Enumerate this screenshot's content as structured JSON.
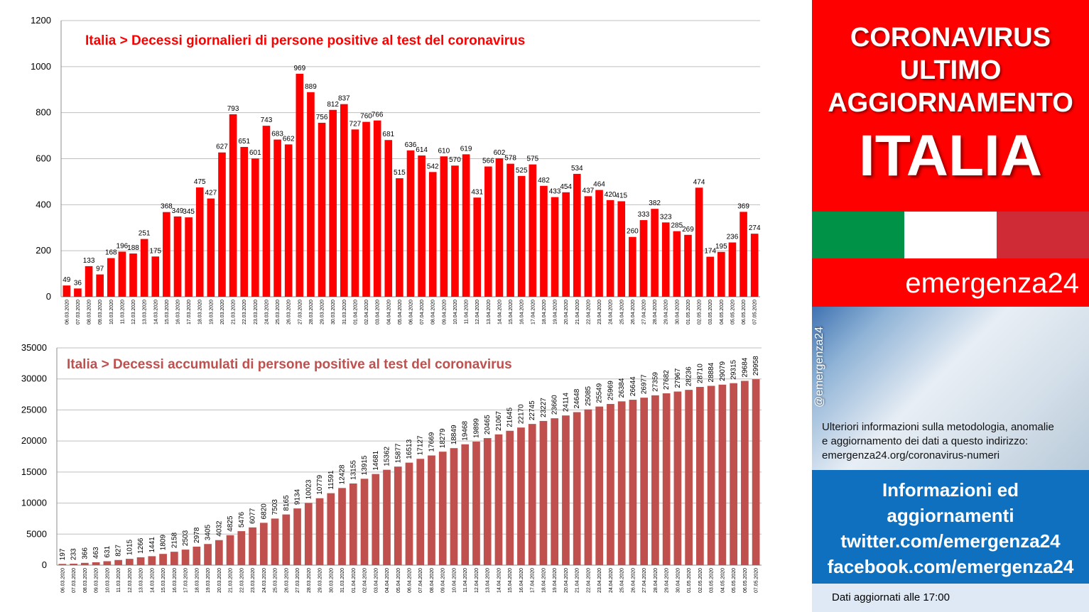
{
  "dates": [
    "06.03.2020",
    "07.03.2020",
    "08.03.2020",
    "09.03.2020",
    "10.03.2020",
    "11.03.2020",
    "12.03.2020",
    "13.03.2020",
    "14.03.2020",
    "15.03.2020",
    "16.03.2020",
    "17.03.2020",
    "18.03.2020",
    "19.03.2020",
    "20.03.2020",
    "21.03.2020",
    "22.03.2020",
    "23.03.2020",
    "24.03.2020",
    "25.03.2020",
    "26.03.2020",
    "27.03.2020",
    "28.03.2020",
    "29.03.2020",
    "30.03.2020",
    "31.03.2020",
    "01.04.2020",
    "02.04.2020",
    "03.04.2020",
    "04.04.2020",
    "05.04.2020",
    "06.04.2020",
    "07.04.2020",
    "08.04.2020",
    "09.04.2020",
    "10.04.2020",
    "11.04.2020",
    "12.04.2020",
    "13.04.2020",
    "14.04.2020",
    "15.04.2020",
    "16.04.2020",
    "17.04.2020",
    "18.04.2020",
    "19.04.2020",
    "20.04.2020",
    "21.04.2020",
    "22.04.2020",
    "23.04.2020",
    "24.04.2020",
    "25.04.2020",
    "26.04.2020",
    "27.04.2020",
    "28.04.2020",
    "29.04.2020",
    "30.04.2020",
    "01.05.2020",
    "02.05.2020",
    "03.05.2020",
    "04.05.2020",
    "05.05.2020",
    "06.05.2020",
    "07.05.2020"
  ],
  "chart_data": [
    {
      "type": "bar",
      "title": "Italia > Decessi giornalieri di persone positive al test del coronavirus",
      "color": "#fe0000",
      "title_color": "#fe0000",
      "ylim": [
        0,
        1200
      ],
      "yticks": [
        0,
        200,
        400,
        600,
        800,
        1000,
        1200
      ],
      "grid": true,
      "value_labels": "horizontal",
      "values": [
        49,
        36,
        133,
        97,
        168,
        196,
        188,
        251,
        175,
        368,
        349,
        345,
        475,
        427,
        627,
        793,
        651,
        601,
        743,
        683,
        662,
        969,
        889,
        756,
        812,
        837,
        727,
        760,
        766,
        681,
        515,
        636,
        614,
        542,
        610,
        570,
        619,
        431,
        566,
        602,
        578,
        525,
        575,
        482,
        433,
        454,
        534,
        437,
        464,
        420,
        415,
        260,
        333,
        382,
        323,
        285,
        269,
        474,
        174,
        195,
        236,
        369,
        274
      ]
    },
    {
      "type": "bar",
      "title": "Italia > Decessi accumulati di persone positive al test del coronavirus",
      "color": "#c0504d",
      "title_color": "#c0504d",
      "ylim": [
        0,
        35000
      ],
      "yticks": [
        0,
        5000,
        10000,
        15000,
        20000,
        25000,
        30000,
        35000
      ],
      "grid": true,
      "value_labels": "vertical",
      "values": [
        197,
        233,
        366,
        463,
        631,
        827,
        1015,
        1266,
        1441,
        1809,
        2158,
        2503,
        2978,
        3405,
        4032,
        4825,
        5476,
        6077,
        6820,
        7503,
        8165,
        9134,
        10023,
        10779,
        11591,
        12428,
        13155,
        13915,
        14681,
        15362,
        15877,
        16513,
        17127,
        17669,
        18279,
        18849,
        19468,
        19899,
        20465,
        21067,
        21645,
        22170,
        22745,
        23227,
        23660,
        24114,
        24648,
        25085,
        25549,
        25969,
        26384,
        26644,
        26977,
        27359,
        27682,
        27967,
        28236,
        28710,
        28884,
        29079,
        29315,
        29684,
        29958
      ]
    }
  ],
  "panel": {
    "title_line1": "CORONAVIRUS",
    "title_line2": "ULTIMO",
    "title_line3": "AGGIORNAMENTO",
    "title_big": "ITALIA",
    "flag_colors": [
      "#009246",
      "#ffffff",
      "#ce2b37"
    ],
    "brand": "emergenza24",
    "handle": "@emergenza24",
    "info_line1": "Ulteriori informazioni sulla metodologia, anomalie",
    "info_line2": "e aggiornamento dei dati a questo indirizzo:",
    "info_line3": "emergenza24.org/coronavirus-numeri",
    "social1": "Informazioni ed",
    "social2": "aggiornamenti",
    "social3": "twitter.com/emergenza24",
    "social4": "facebook.com/emergenza24",
    "updated": "Dati aggiornati alle 17:00"
  }
}
